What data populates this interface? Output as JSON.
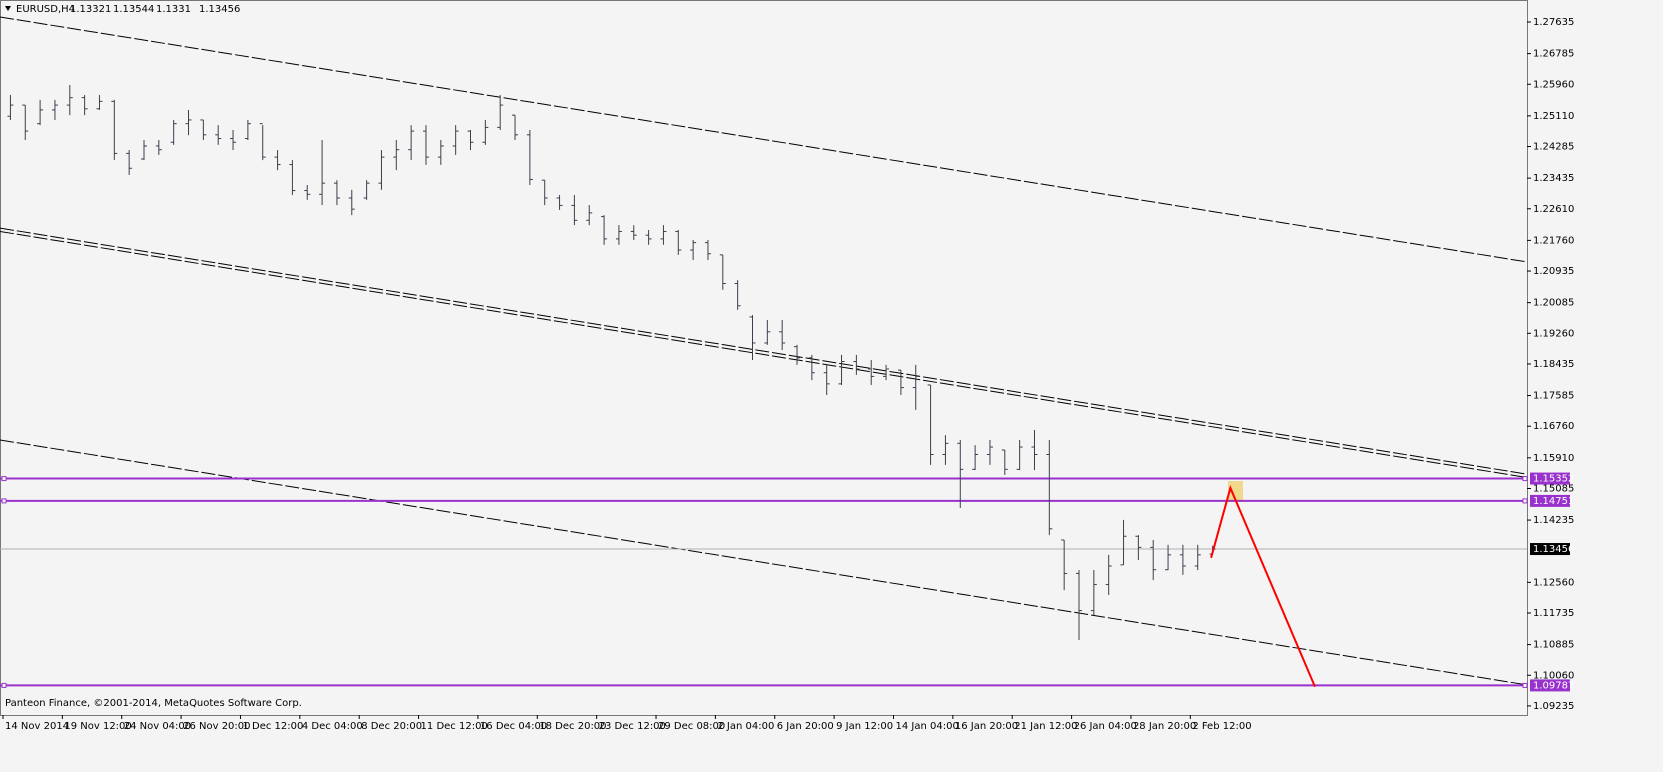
{
  "chart_data": {
    "type": "ohlc",
    "title": "EURUSD,H4",
    "footer": "Panteon Finance, ©2001-2014, MetaQuotes Software Corp.",
    "bar_color": "#3a3f4b",
    "categories": [
      "14 Nov 2014",
      null,
      null,
      null,
      "19 Nov 12:00",
      null,
      null,
      null,
      "24 Nov 04:00",
      null,
      null,
      null,
      "26 Nov 20:00",
      null,
      null,
      null,
      "1 Dec 12:00",
      null,
      null,
      null,
      "4 Dec 04:00",
      null,
      null,
      null,
      "8 Dec 20:00",
      null,
      null,
      null,
      "11 Dec 12:00",
      null,
      null,
      null,
      "16 Dec 04:00",
      null,
      null,
      null,
      "18 Dec 20:00",
      null,
      null,
      null,
      "23 Dec 12:00",
      null,
      null,
      null,
      "29 Dec 08:00",
      null,
      null,
      null,
      "2 Jan 04:00",
      null,
      null,
      null,
      "6 Jan 20:00",
      null,
      null,
      null,
      "9 Jan 12:00",
      null,
      null,
      null,
      "14 Jan 04:00",
      null,
      null,
      null,
      "16 Jan 20:00",
      null,
      null,
      null,
      "21 Jan 12:00",
      null,
      null,
      null,
      "26 Jan 04:00",
      null,
      null,
      null,
      "28 Jan 20:00",
      null,
      null,
      null,
      "2 Feb 12:00",
      null
    ],
    "open": [
      1.251,
      1.254,
      1.249,
      1.2527,
      1.254,
      1.256,
      1.253,
      1.255,
      1.241,
      1.2395,
      1.243,
      1.244,
      1.249,
      1.25,
      1.246,
      1.245,
      1.245,
      1.249,
      1.24,
      1.238,
      1.231,
      1.23,
      1.233,
      1.229,
      1.229,
      1.233,
      1.24,
      1.242,
      1.247,
      1.24,
      1.243,
      1.247,
      1.244,
      1.248,
      1.2513,
      1.246,
      1.2338,
      1.229,
      1.227,
      1.223,
      1.224,
      1.218,
      1.22,
      1.219,
      1.218,
      1.22,
      1.215,
      1.217,
      1.2137,
      1.206,
      1.197,
      1.19,
      1.193,
      1.189,
      1.186,
      1.182,
      1.179,
      1.185,
      1.183,
      1.181,
      1.1827,
      1.178,
      1.1787,
      1.16,
      1.163,
      1.156,
      1.16,
      1.1612,
      1.156,
      1.162,
      1.16,
      1.137,
      1.128,
      1.118,
      1.125,
      1.1303,
      1.138,
      1.135,
      1.129,
      1.133,
      1.13,
      1.13321
    ],
    "high": [
      1.2567,
      1.254,
      1.2554,
      1.2554,
      1.2594,
      1.2567,
      1.2567,
      1.2554,
      1.2419,
      1.2446,
      1.2446,
      1.25,
      1.2527,
      1.25,
      1.2486,
      1.2473,
      1.25,
      1.2486,
      1.2419,
      1.2392,
      1.2325,
      1.2446,
      1.2338,
      1.2312,
      1.2338,
      1.2419,
      1.2446,
      1.2486,
      1.2486,
      1.2446,
      1.2486,
      1.2473,
      1.25,
      1.2567,
      1.2513,
      1.2473,
      1.2338,
      1.2298,
      1.2298,
      1.2271,
      1.2244,
      1.2217,
      1.2217,
      1.2204,
      1.2217,
      1.2204,
      1.2177,
      1.2177,
      1.2137,
      1.2069,
      1.1975,
      1.1962,
      1.1962,
      1.1895,
      1.1868,
      1.1841,
      1.1868,
      1.1868,
      1.1854,
      1.1841,
      1.1827,
      1.1841,
      1.1787,
      1.1652,
      1.1639,
      1.1625,
      1.1639,
      1.1612,
      1.1639,
      1.1666,
      1.1639,
      1.137,
      1.1289,
      1.1289,
      1.133,
      1.1424,
      1.1383,
      1.137,
      1.1357,
      1.1357,
      1.1357,
      1.13544
    ],
    "low": [
      1.25,
      1.2446,
      1.2486,
      1.25,
      1.2513,
      1.2513,
      1.2527,
      1.2392,
      1.2352,
      1.2392,
      1.2406,
      1.2433,
      1.2459,
      1.2446,
      1.2433,
      1.2419,
      1.2446,
      1.2392,
      1.2365,
      1.2298,
      1.2285,
      1.2271,
      1.2271,
      1.2244,
      1.2285,
      1.2312,
      1.2365,
      1.2392,
      1.2379,
      1.2379,
      1.2406,
      1.2419,
      1.2433,
      1.2473,
      1.2446,
      1.2325,
      1.2271,
      1.2258,
      1.2217,
      1.2217,
      1.2164,
      1.2164,
      1.2177,
      1.2164,
      1.2164,
      1.2137,
      1.2123,
      1.2123,
      1.2043,
      1.1989,
      1.1854,
      1.1895,
      1.1881,
      1.1841,
      1.18,
      1.176,
      1.1787,
      1.1814,
      1.1787,
      1.18,
      1.176,
      1.172,
      1.1572,
      1.1572,
      1.1456,
      1.1558,
      1.1572,
      1.1545,
      1.1558,
      1.1558,
      1.1383,
      1.1235,
      1.1101,
      1.1168,
      1.1222,
      1.1303,
      1.1316,
      1.1262,
      1.1289,
      1.1276,
      1.1289,
      1.1331
    ],
    "close": [
      1.254,
      1.247,
      1.2527,
      1.254,
      1.256,
      1.253,
      1.255,
      1.241,
      1.237,
      1.243,
      1.242,
      1.249,
      1.25,
      1.246,
      1.245,
      1.244,
      1.249,
      1.24,
      1.238,
      1.231,
      1.23,
      1.233,
      1.229,
      1.226,
      1.233,
      1.24,
      1.242,
      1.247,
      1.24,
      1.243,
      1.247,
      1.244,
      1.248,
      1.254,
      1.246,
      1.234,
      1.229,
      1.227,
      1.223,
      1.225,
      1.218,
      1.22,
      1.219,
      1.218,
      1.22,
      1.215,
      1.217,
      1.214,
      1.206,
      1.2,
      1.19,
      1.193,
      1.19,
      1.186,
      1.182,
      1.179,
      1.185,
      1.183,
      1.181,
      1.183,
      1.178,
      1.181,
      1.16,
      1.163,
      1.156,
      1.16,
      1.162,
      1.156,
      1.162,
      1.16,
      1.14,
      1.128,
      1.118,
      1.125,
      1.13,
      1.138,
      1.135,
      1.129,
      1.133,
      1.13,
      1.133,
      1.13456
    ],
    "ylim": [
      1.08991,
      1.28227
    ],
    "yticks": [
      1.27635,
      1.26785,
      {
        "value": 1.2596,
        "label": "1.25960"
      },
      {
        "value": 1.2511,
        "label": "1.25110"
      },
      1.24285,
      1.23435,
      {
        "value": 1.2261,
        "label": "1.22610"
      },
      {
        "value": 1.2176,
        "label": "1.21760"
      },
      1.20935,
      1.20085,
      {
        "value": 1.1926,
        "label": "1.19260"
      },
      1.18435,
      1.17585,
      {
        "value": 1.1676,
        "label": "1.16760"
      },
      {
        "value": 1.1591,
        "label": "1.15910"
      },
      1.15085,
      1.14235,
      {
        "value": 1.1256,
        "label": "1.12560"
      },
      1.11735,
      1.10885,
      {
        "value": 1.1006,
        "label": "1.10060"
      },
      1.09235
    ],
    "horizontal_lines": [
      {
        "value": 1.15352,
        "color": "#9932cc"
      },
      {
        "value": 1.14751,
        "color": "#9932cc"
      },
      {
        "value": 1.09787,
        "color": "#9932cc"
      }
    ],
    "trend_lines": [
      {
        "from": 1.2777,
        "to": 1.2118
      },
      {
        "from": 1.2209,
        "to": 1.1547
      },
      {
        "from": 1.22,
        "to": 1.1538
      },
      {
        "from": 1.1639,
        "to": 1.098
      }
    ],
    "projection": {
      "color": "#ff0000",
      "x": [
        80.9,
        82.2,
        87.9
      ],
      "y": [
        1.1322,
        1.151,
        1.0975
      ]
    }
  }
}
